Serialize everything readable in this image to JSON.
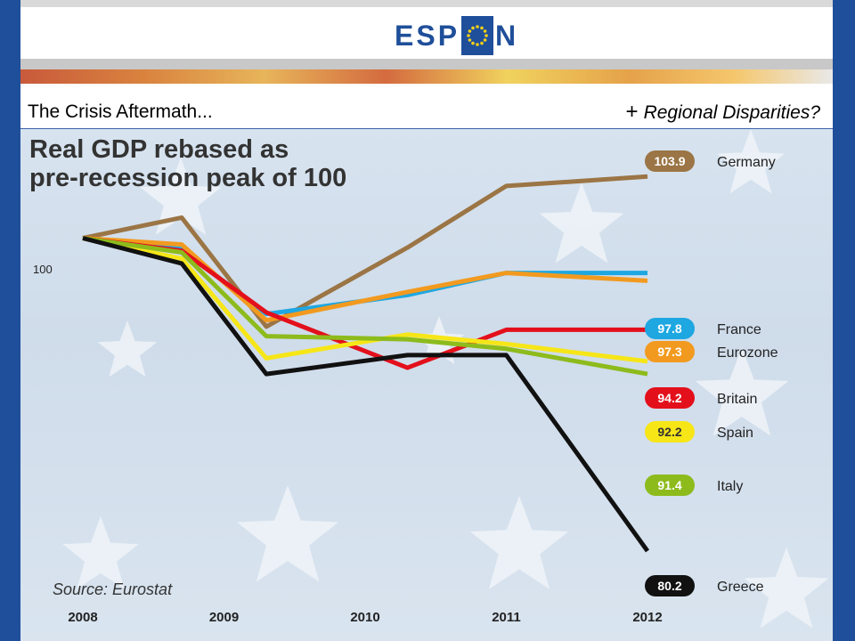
{
  "header": {
    "logo_left": "ESP",
    "logo_right": "N"
  },
  "slide": {
    "title_left": "The Crisis Aftermath...",
    "title_right_plus": "+",
    "title_right": "Regional Disparities?"
  },
  "chart_data": {
    "type": "line",
    "title_line1": "Real GDP rebased as",
    "title_line2": "pre-recession peak of 100",
    "source": "Source: Eurostat",
    "baseline_label": "100",
    "x_ticks": [
      "2008",
      "2009",
      "2010",
      "2011",
      "2012"
    ],
    "x": [
      2008.0,
      2008.7,
      2009.3,
      2010.3,
      2011.0,
      2012.0
    ],
    "ylim": [
      78,
      106
    ],
    "series": [
      {
        "name": "Germany",
        "end_label": "103.9",
        "color": "#9b7545",
        "values": [
          100,
          101.3,
          94.4,
          99.4,
          103.3,
          103.9
        ]
      },
      {
        "name": "France",
        "end_label": "97.8",
        "color": "#1ea7e1",
        "values": [
          100,
          99.3,
          95.2,
          96.4,
          97.8,
          97.8
        ]
      },
      {
        "name": "Eurozone",
        "end_label": "97.3",
        "color": "#f29a1f",
        "values": [
          100,
          99.6,
          94.8,
          96.6,
          97.8,
          97.3
        ]
      },
      {
        "name": "Britain",
        "end_label": "94.2",
        "color": "#e3101c",
        "values": [
          100,
          99.2,
          95.3,
          91.8,
          94.2,
          94.2
        ]
      },
      {
        "name": "Spain",
        "end_label": "92.2",
        "color": "#f6e617",
        "values": [
          100,
          98.7,
          92.4,
          93.9,
          93.3,
          92.2
        ]
      },
      {
        "name": "Italy",
        "end_label": "91.4",
        "color": "#8dbb1c",
        "values": [
          100,
          99.1,
          93.8,
          93.6,
          93.0,
          91.4
        ]
      },
      {
        "name": "Greece",
        "end_label": "80.2",
        "color": "#111111",
        "values": [
          100,
          98.4,
          91.4,
          92.6,
          92.6,
          80.2
        ]
      }
    ]
  }
}
